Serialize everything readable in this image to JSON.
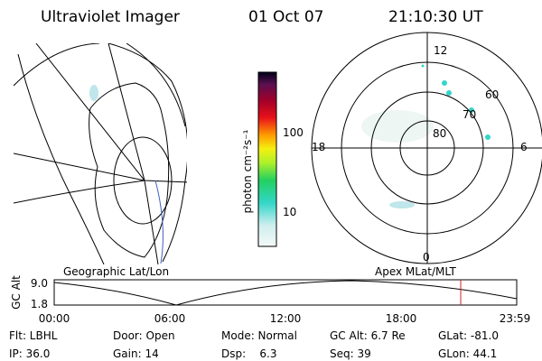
{
  "header": {
    "instrument": "Ultraviolet Imager",
    "date": "01 Oct 07",
    "time": "21:10:30 UT"
  },
  "color_bar": {
    "label": "photon cm⁻²s⁻¹",
    "ticks": [
      "100",
      "10"
    ]
  },
  "polar_plot": {
    "mlt_labels": [
      "12",
      "6",
      "0",
      "18"
    ],
    "lat_labels": [
      "60",
      "70",
      "80"
    ]
  },
  "ephemeris": {
    "left_title": "Geographic Lat/Lon",
    "right_title": "Apex MLat/MLT",
    "y_label": "GC Alt",
    "y_ticks": [
      "9.0",
      "1.8"
    ],
    "x_ticks": [
      "00:00",
      "06:00",
      "12:00",
      "18:00",
      "23:59"
    ]
  },
  "status": {
    "rows": [
      [
        "Flt: LBHL",
        "Door: Open",
        "Mode: Normal",
        "GC Alt: 6.7 Re",
        "GLat: -81.0"
      ],
      [
        "IP: 36.0",
        "Gain: 14",
        "Dsp:    6.3",
        "Seq: 39",
        "GLon: 44.1"
      ]
    ]
  }
}
